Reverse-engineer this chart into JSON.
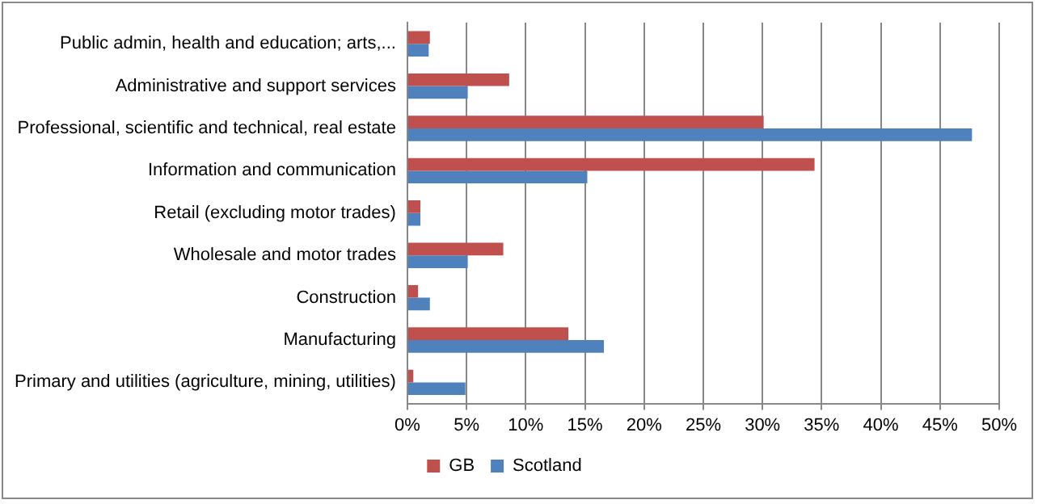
{
  "chart_data": {
    "type": "bar",
    "orientation": "horizontal",
    "categories": [
      "Public admin, health and education; arts,...",
      "Administrative and support services",
      "Professional, scientific and technical, real estate",
      "Information and communication",
      "Retail (excluding motor trades)",
      "Wholesale and motor trades",
      "Construction",
      "Manufacturing",
      "Primary and utilities (agriculture, mining, utilities)"
    ],
    "series": [
      {
        "name": "GB",
        "color": "#c0504d",
        "values": [
          1.9,
          8.6,
          30.1,
          34.4,
          1.1,
          8.1,
          0.9,
          13.6,
          0.5
        ]
      },
      {
        "name": "Scotland",
        "color": "#4f81bd",
        "values": [
          1.8,
          5.1,
          47.7,
          15.2,
          1.1,
          5.1,
          1.9,
          16.6,
          4.9
        ]
      }
    ],
    "xlim": [
      0,
      50
    ],
    "xticks": [
      {
        "value": 0,
        "label": "0%"
      },
      {
        "value": 5,
        "label": "5%"
      },
      {
        "value": 10,
        "label": "10%"
      },
      {
        "value": 15,
        "label": "15%"
      },
      {
        "value": 20,
        "label": "20%"
      },
      {
        "value": 25,
        "label": "25%"
      },
      {
        "value": 30,
        "label": "30%"
      },
      {
        "value": 35,
        "label": "35%"
      },
      {
        "value": 40,
        "label": "40%"
      },
      {
        "value": 45,
        "label": "45%"
      },
      {
        "value": 50,
        "label": "50%"
      }
    ],
    "grid": "x",
    "legend": "bottom"
  }
}
